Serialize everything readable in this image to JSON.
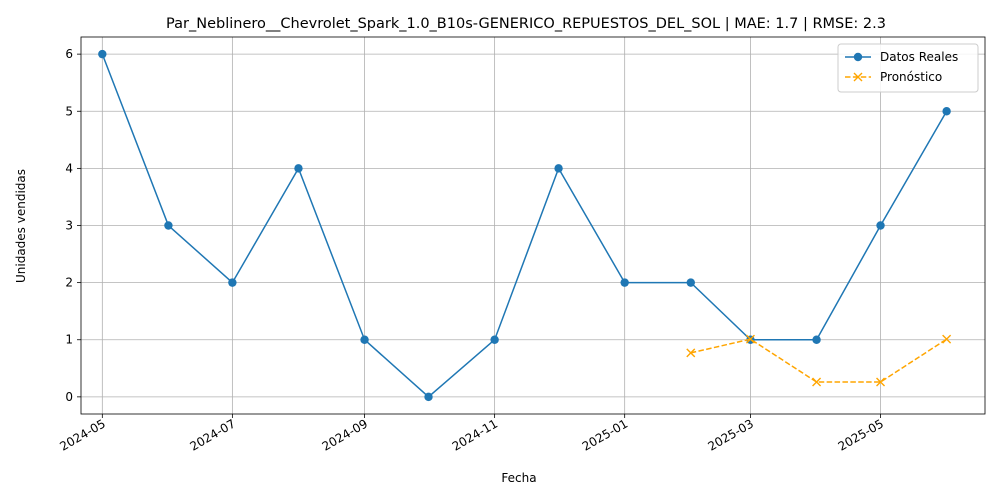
{
  "chart_data": {
    "type": "line",
    "title": "Par_Neblinero__Chevrolet_Spark_1.0_B10s-GENERICO_REPUESTOS_DEL_SOL | MAE: 1.7 | RMSE: 2.3",
    "xlabel": "Fecha",
    "ylabel": "Unidades vendidas",
    "x_ticks": [
      "2024-05",
      "2024-07",
      "2024-09",
      "2024-11",
      "2025-01",
      "2025-03",
      "2025-05"
    ],
    "y_ticks": [
      0,
      1,
      2,
      3,
      4,
      5,
      6
    ],
    "xlim": [
      "2024-04-21",
      "2025-06-19"
    ],
    "ylim": [
      -0.3,
      6.3
    ],
    "grid": true,
    "legend_position": "top-right",
    "series": [
      {
        "name": "Datos Reales",
        "color": "#1f77b4",
        "style": "solid",
        "marker": "circle",
        "x": [
          "2024-05-01",
          "2024-06-01",
          "2024-07-01",
          "2024-08-01",
          "2024-09-01",
          "2024-10-01",
          "2024-11-01",
          "2024-12-01",
          "2025-01-01",
          "2025-02-01",
          "2025-03-01",
          "2025-04-01",
          "2025-05-01",
          "2025-06-01"
        ],
        "values": [
          6,
          3,
          2,
          4,
          1,
          0,
          1,
          4,
          2,
          2,
          1,
          1,
          3,
          5
        ]
      },
      {
        "name": "Pronóstico",
        "color": "#ffa500",
        "style": "dashed",
        "marker": "x",
        "x": [
          "2025-02-01",
          "2025-03-01",
          "2025-04-01",
          "2025-05-01",
          "2025-06-01"
        ],
        "values": [
          0.77,
          1.01,
          0.26,
          0.26,
          1.01
        ]
      }
    ]
  }
}
